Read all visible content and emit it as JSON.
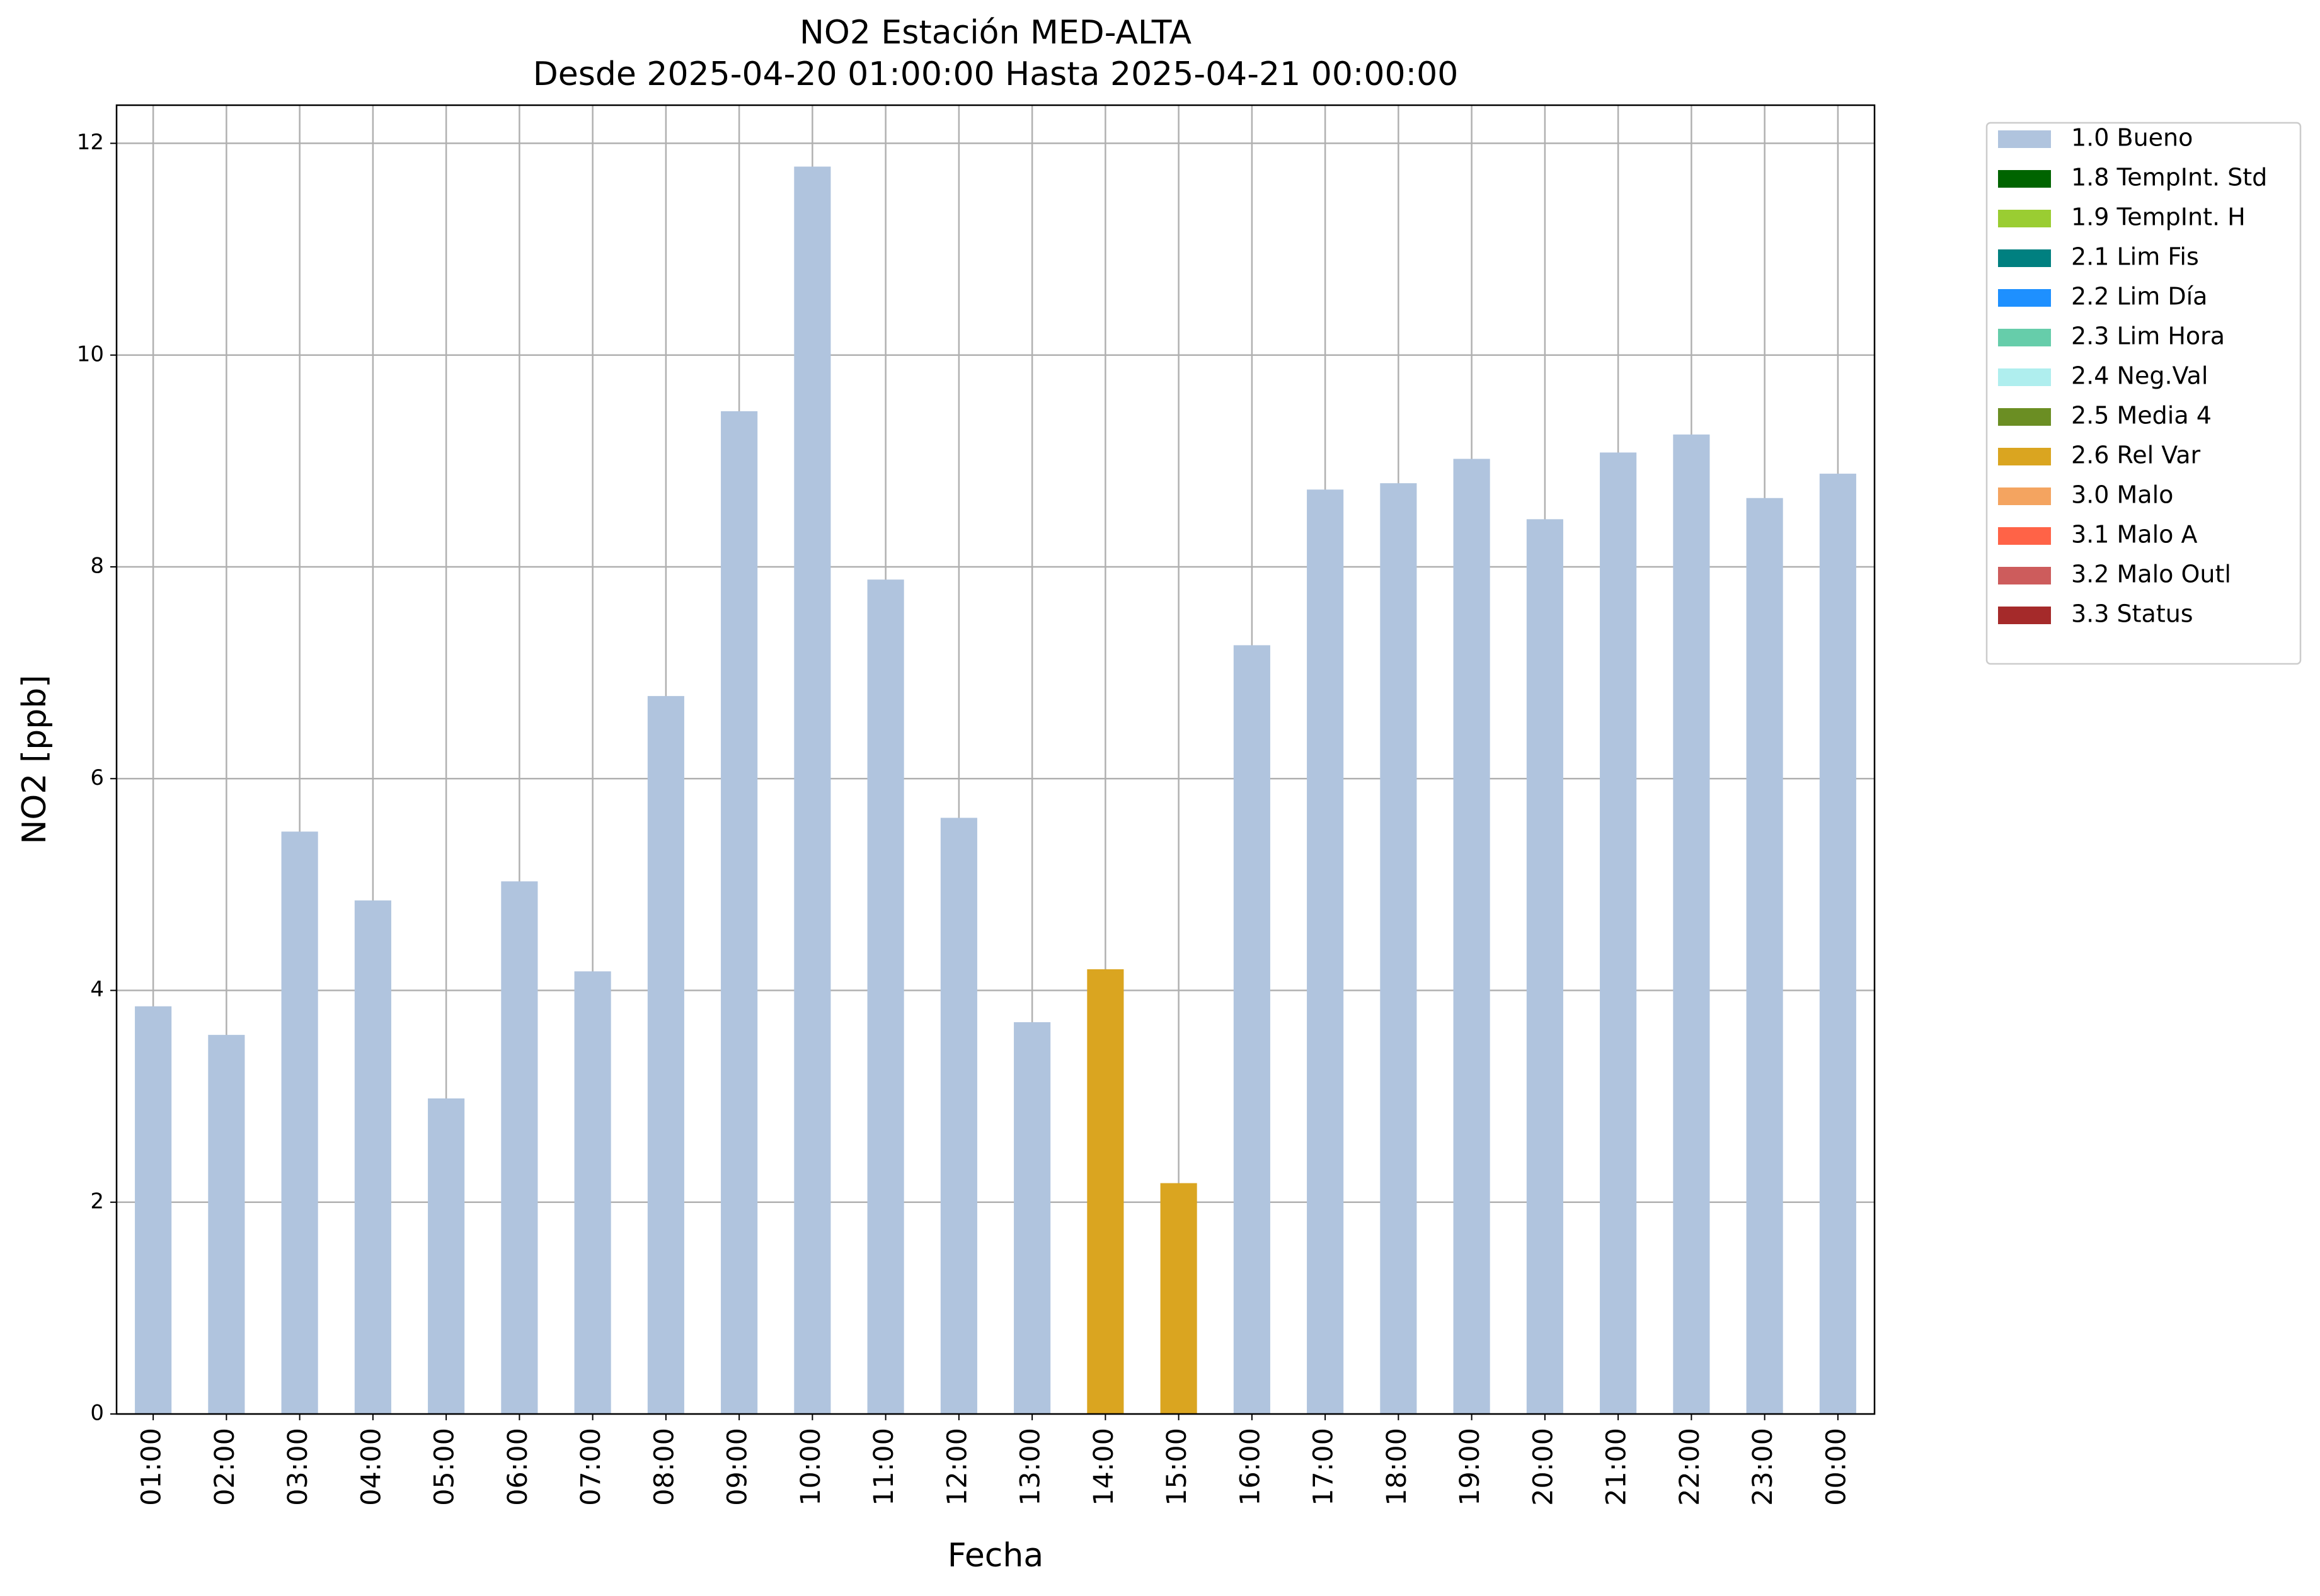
{
  "chart_data": {
    "type": "stacked_bar",
    "title": "NO2 Estación MED-ALTA",
    "subtitle": "Desde 2025-04-20 01:00:00 Hasta 2025-04-21 00:00:00",
    "x_label": "Fecha",
    "y_label": "NO2 [ppb]",
    "categories": [
      "01:00",
      "02:00",
      "03:00",
      "04:00",
      "05:00",
      "06:00",
      "07:00",
      "08:00",
      "09:00",
      "10:00",
      "11:00",
      "12:00",
      "13:00",
      "14:00",
      "15:00",
      "16:00",
      "17:00",
      "18:00",
      "19:00",
      "20:00",
      "21:00",
      "22:00",
      "23:00",
      "00:00"
    ],
    "ylim": [
      0,
      12.36
    ],
    "yticks": [
      0,
      2,
      4,
      6,
      8,
      10,
      12
    ],
    "grid": true,
    "legend": "outside-right",
    "series": [
      {
        "name": "1.0 Bueno",
        "color": "#b0c4de",
        "values": [
          3.85,
          3.58,
          5.5,
          4.85,
          2.98,
          5.03,
          4.18,
          6.78,
          9.47,
          11.78,
          7.88,
          5.63,
          3.7,
          0,
          0,
          7.26,
          8.73,
          8.79,
          9.02,
          8.45,
          9.08,
          9.25,
          8.65,
          8.88
        ]
      },
      {
        "name": "1.8 TempInt. Std",
        "color": "#006400",
        "values": [
          0,
          0,
          0,
          0,
          0,
          0,
          0,
          0,
          0,
          0,
          0,
          0,
          0,
          0,
          0,
          0,
          0,
          0,
          0,
          0,
          0,
          0,
          0,
          0
        ]
      },
      {
        "name": "1.9 TempInt. H",
        "color": "#9acd32",
        "values": [
          0,
          0,
          0,
          0,
          0,
          0,
          0,
          0,
          0,
          0,
          0,
          0,
          0,
          0,
          0,
          0,
          0,
          0,
          0,
          0,
          0,
          0,
          0,
          0
        ]
      },
      {
        "name": "2.1 Lim Fis",
        "color": "#008080",
        "values": [
          0,
          0,
          0,
          0,
          0,
          0,
          0,
          0,
          0,
          0,
          0,
          0,
          0,
          0,
          0,
          0,
          0,
          0,
          0,
          0,
          0,
          0,
          0,
          0
        ]
      },
      {
        "name": "2.2 Lim Día",
        "color": "#1e90ff",
        "values": [
          0,
          0,
          0,
          0,
          0,
          0,
          0,
          0,
          0,
          0,
          0,
          0,
          0,
          0,
          0,
          0,
          0,
          0,
          0,
          0,
          0,
          0,
          0,
          0
        ]
      },
      {
        "name": "2.3 Lim Hora",
        "color": "#66cdaa",
        "values": [
          0,
          0,
          0,
          0,
          0,
          0,
          0,
          0,
          0,
          0,
          0,
          0,
          0,
          0,
          0,
          0,
          0,
          0,
          0,
          0,
          0,
          0,
          0,
          0
        ]
      },
      {
        "name": "2.4 Neg.Val",
        "color": "#afeeee",
        "values": [
          0,
          0,
          0,
          0,
          0,
          0,
          0,
          0,
          0,
          0,
          0,
          0,
          0,
          0,
          0,
          0,
          0,
          0,
          0,
          0,
          0,
          0,
          0,
          0
        ]
      },
      {
        "name": "2.5 Media 4",
        "color": "#6b8e23",
        "values": [
          0,
          0,
          0,
          0,
          0,
          0,
          0,
          0,
          0,
          0,
          0,
          0,
          0,
          0,
          0,
          0,
          0,
          0,
          0,
          0,
          0,
          0,
          0,
          0
        ]
      },
      {
        "name": "2.6 Rel Var",
        "color": "#daa520",
        "values": [
          0,
          0,
          0,
          0,
          0,
          0,
          0,
          0,
          0,
          0,
          0,
          0,
          0,
          4.2,
          2.18,
          0,
          0,
          0,
          0,
          0,
          0,
          0,
          0,
          0
        ]
      },
      {
        "name": "3.0 Malo",
        "color": "#f4a460",
        "values": [
          0,
          0,
          0,
          0,
          0,
          0,
          0,
          0,
          0,
          0,
          0,
          0,
          0,
          0,
          0,
          0,
          0,
          0,
          0,
          0,
          0,
          0,
          0,
          0
        ]
      },
      {
        "name": "3.1 Malo A",
        "color": "#ff6347",
        "values": [
          0,
          0,
          0,
          0,
          0,
          0,
          0,
          0,
          0,
          0,
          0,
          0,
          0,
          0,
          0,
          0,
          0,
          0,
          0,
          0,
          0,
          0,
          0,
          0
        ]
      },
      {
        "name": "3.2 Malo Outl",
        "color": "#cd5c5c",
        "values": [
          0,
          0,
          0,
          0,
          0,
          0,
          0,
          0,
          0,
          0,
          0,
          0,
          0,
          0,
          0,
          0,
          0,
          0,
          0,
          0,
          0,
          0,
          0,
          0
        ]
      },
      {
        "name": "3.3 Status",
        "color": "#a52a2a",
        "values": [
          0,
          0,
          0,
          0,
          0,
          0,
          0,
          0,
          0,
          0,
          0,
          0,
          0,
          0,
          0,
          0,
          0,
          0,
          0,
          0,
          0,
          0,
          0,
          0
        ]
      }
    ]
  }
}
